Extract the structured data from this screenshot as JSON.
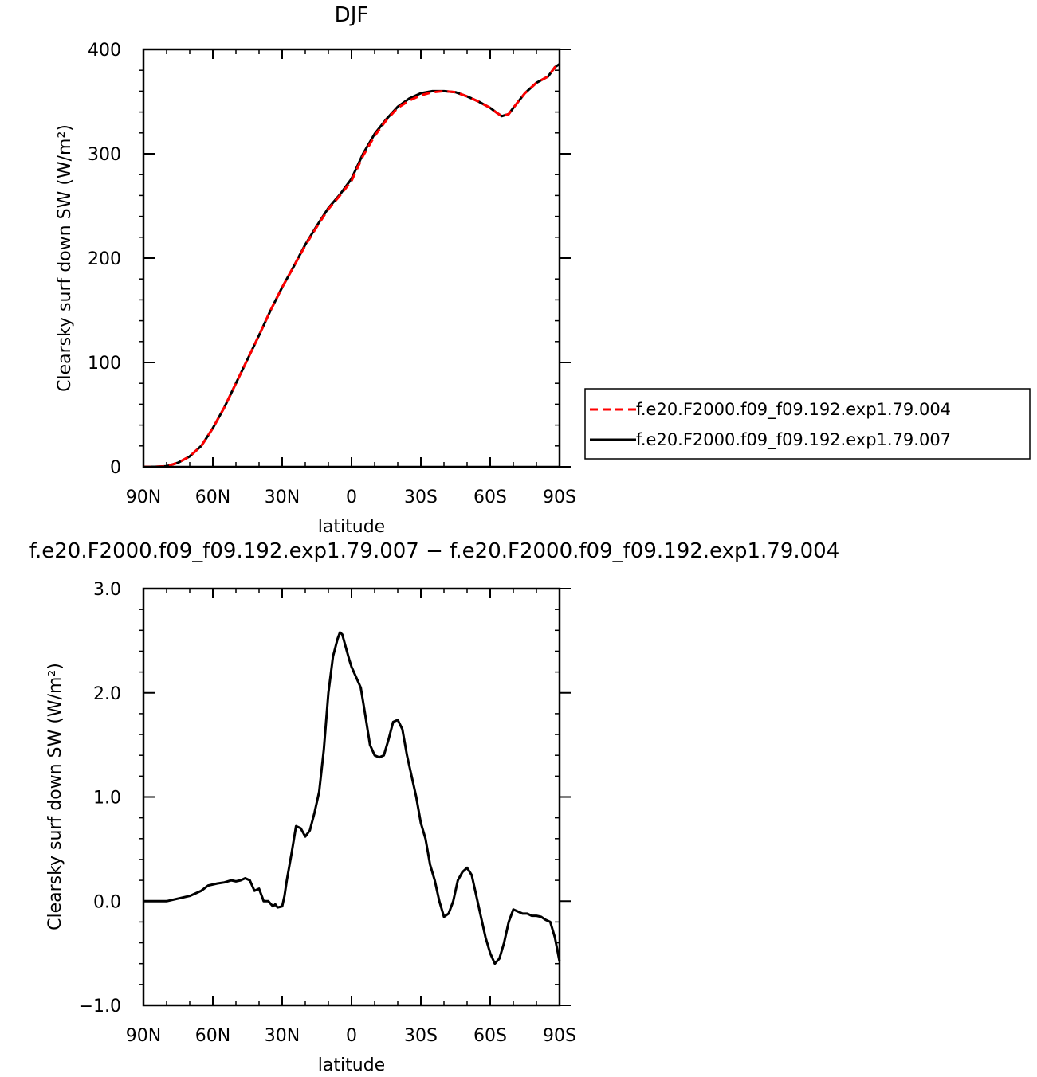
{
  "chart_data": [
    {
      "type": "line",
      "title": "DJF",
      "xlabel": "latitude",
      "ylabel": "Clearsky surf down SW (W/m²)",
      "xlim": [
        90,
        -90
      ],
      "ylim": [
        0,
        400
      ],
      "x_ticks": [
        90,
        60,
        30,
        0,
        -30,
        -60,
        -90
      ],
      "x_tick_labels": [
        "90N",
        "60N",
        "30N",
        "0",
        "30S",
        "60S",
        "90S"
      ],
      "y_ticks": [
        0,
        100,
        200,
        300,
        400
      ],
      "y_tick_labels": [
        "0",
        "100",
        "200",
        "300",
        "400"
      ],
      "legend_position": "right",
      "series": [
        {
          "name": "f.e20.F2000.f09_f09.192.exp1.79.004",
          "color": "#ff0000",
          "dash": "dashed",
          "x": [
            90,
            85,
            80,
            75,
            70,
            65,
            60,
            55,
            50,
            45,
            40,
            35,
            30,
            25,
            20,
            15,
            10,
            5,
            0,
            -5,
            -10,
            -15,
            -20,
            -25,
            -30,
            -35,
            -40,
            -45,
            -50,
            -55,
            -60,
            -63,
            -65,
            -68,
            -70,
            -75,
            -80,
            -85,
            -88,
            -90
          ],
          "y": [
            0,
            0,
            0.5,
            4,
            10,
            20,
            37,
            57,
            80,
            103,
            126,
            150,
            172,
            192,
            212,
            230,
            247,
            260,
            274,
            298,
            317,
            332,
            344,
            351,
            356,
            359,
            360,
            359,
            355,
            350,
            344,
            339,
            336,
            338,
            344,
            358,
            368,
            374,
            383,
            386
          ]
        },
        {
          "name": "f.e20.F2000.f09_f09.192.exp1.79.007",
          "color": "#000000",
          "dash": "solid",
          "x": [
            90,
            85,
            80,
            75,
            70,
            65,
            60,
            55,
            50,
            45,
            40,
            35,
            30,
            25,
            20,
            15,
            10,
            5,
            0,
            -5,
            -10,
            -15,
            -20,
            -25,
            -30,
            -35,
            -40,
            -45,
            -50,
            -55,
            -60,
            -63,
            -65,
            -68,
            -70,
            -75,
            -80,
            -85,
            -88,
            -90
          ],
          "y": [
            0,
            0,
            0.5,
            4,
            10,
            20,
            37,
            57,
            80,
            103,
            126,
            150,
            172,
            192,
            213,
            231,
            248,
            261,
            276,
            300,
            319,
            333,
            345,
            353,
            358,
            360,
            360,
            359,
            355,
            350,
            344,
            339,
            336,
            338,
            344,
            358,
            368,
            374,
            383,
            386
          ]
        }
      ]
    },
    {
      "type": "line",
      "title": "f.e20.F2000.f09_f09.192.exp1.79.007 − f.e20.F2000.f09_f09.192.exp1.79.004",
      "xlabel": "latitude",
      "ylabel": "Clearsky surf down SW (W/m²)",
      "xlim": [
        90,
        -90
      ],
      "ylim": [
        -1,
        3
      ],
      "x_ticks": [
        90,
        60,
        30,
        0,
        -30,
        -60,
        -90
      ],
      "x_tick_labels": [
        "90N",
        "60N",
        "30N",
        "0",
        "30S",
        "60S",
        "90S"
      ],
      "y_ticks": [
        -1,
        0,
        1,
        2,
        3
      ],
      "y_tick_labels": [
        "−1.0",
        "0.0",
        "1.0",
        "2.0",
        "3.0"
      ],
      "series": [
        {
          "color": "#000000",
          "dash": "solid",
          "x": [
            90,
            80,
            70,
            65,
            62,
            58,
            55,
            52,
            50,
            48,
            46,
            44,
            42,
            40,
            38,
            36,
            34,
            33,
            32,
            30,
            29,
            28,
            26,
            24,
            22,
            20,
            18,
            16,
            14,
            12,
            10,
            8,
            6,
            5,
            4,
            2,
            1,
            0,
            -2,
            -4,
            -6,
            -8,
            -10,
            -12,
            -14,
            -16,
            -18,
            -20,
            -22,
            -24,
            -26,
            -28,
            -30,
            -32,
            -34,
            -36,
            -38,
            -40,
            -42,
            -44,
            -46,
            -48,
            -50,
            -52,
            -54,
            -56,
            -58,
            -60,
            -62,
            -64,
            -66,
            -68,
            -70,
            -72,
            -74,
            -76,
            -78,
            -80,
            -82,
            -84,
            -86,
            -88,
            -90
          ],
          "y": [
            0.0,
            0.0,
            0.05,
            0.1,
            0.15,
            0.17,
            0.18,
            0.2,
            0.19,
            0.2,
            0.22,
            0.2,
            0.1,
            0.12,
            0.0,
            0.0,
            -0.05,
            -0.03,
            -0.06,
            -0.05,
            0.05,
            0.2,
            0.45,
            0.72,
            0.7,
            0.62,
            0.68,
            0.85,
            1.05,
            1.45,
            2.0,
            2.35,
            2.52,
            2.58,
            2.56,
            2.4,
            2.32,
            2.25,
            2.15,
            2.05,
            1.78,
            1.5,
            1.4,
            1.38,
            1.4,
            1.55,
            1.72,
            1.74,
            1.65,
            1.4,
            1.2,
            1.0,
            0.75,
            0.6,
            0.35,
            0.2,
            0.0,
            -0.15,
            -0.12,
            0.0,
            0.2,
            0.28,
            0.32,
            0.25,
            0.05,
            -0.15,
            -0.35,
            -0.5,
            -0.6,
            -0.55,
            -0.4,
            -0.2,
            -0.08,
            -0.1,
            -0.12,
            -0.12,
            -0.14,
            -0.14,
            -0.15,
            -0.18,
            -0.2,
            -0.35,
            -0.58
          ]
        }
      ]
    }
  ]
}
